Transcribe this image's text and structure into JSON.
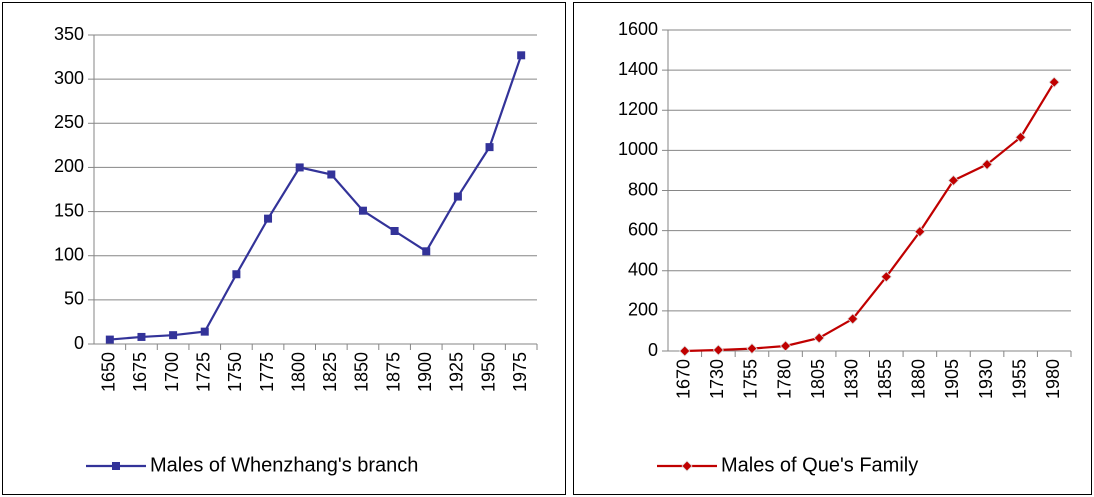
{
  "chart_data": [
    {
      "type": "line",
      "categories": [
        "1650",
        "1675",
        "1700",
        "1725",
        "1750",
        "1775",
        "1800",
        "1825",
        "1850",
        "1875",
        "1900",
        "1925",
        "1950",
        "1975"
      ],
      "series": [
        {
          "name": "Males of Whenzhang's branch",
          "color": "#333399",
          "marker": "square",
          "values": [
            5,
            8,
            10,
            14,
            79,
            142,
            200,
            192,
            151,
            128,
            105,
            167,
            223,
            327
          ]
        }
      ],
      "ylim": [
        0,
        350
      ],
      "yticks": [
        0,
        50,
        100,
        150,
        200,
        250,
        300,
        350
      ],
      "grid": true,
      "legend": "bottom"
    },
    {
      "type": "line",
      "categories": [
        "1670",
        "1730",
        "1755",
        "1780",
        "1805",
        "1830",
        "1855",
        "1880",
        "1905",
        "1930",
        "1955",
        "1980"
      ],
      "series": [
        {
          "name": "Males of Que's Family",
          "color": "#c00000",
          "marker": "diamond",
          "values": [
            0,
            5,
            12,
            25,
            65,
            160,
            370,
            595,
            850,
            930,
            1065,
            1340
          ]
        }
      ],
      "ylim": [
        0,
        1600
      ],
      "yticks": [
        0,
        200,
        400,
        600,
        800,
        1000,
        1200,
        1400,
        1600
      ],
      "grid": true,
      "legend": "bottom"
    }
  ]
}
